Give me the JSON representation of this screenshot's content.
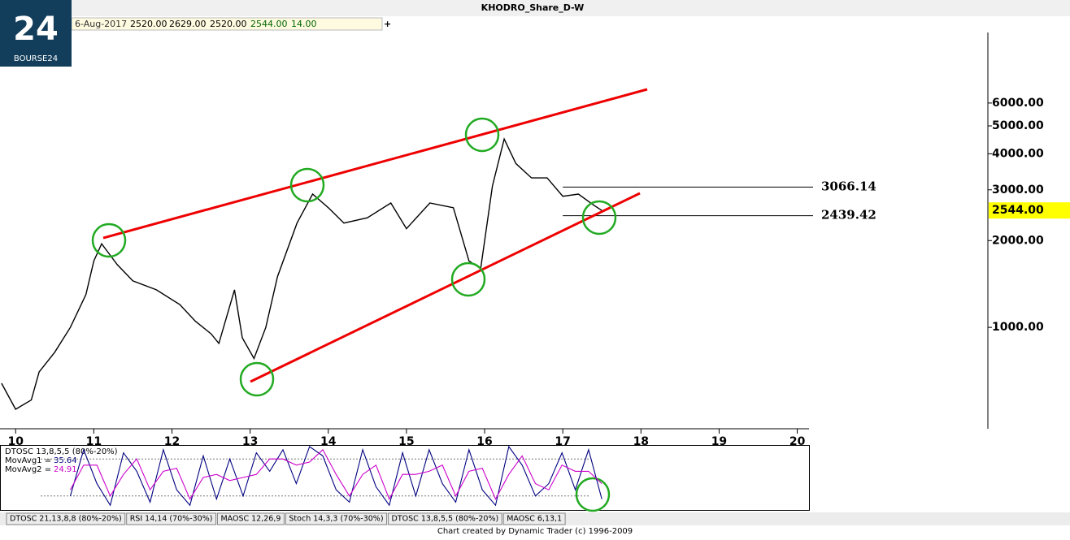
{
  "header": {
    "title": "KHODRO_Share_D-W",
    "date": "6-Aug-2017",
    "open": "2520.00",
    "high": "2629.00",
    "low": "2520.00",
    "close": "2544.00",
    "change": "14.00",
    "logo": "BOURSE24"
  },
  "chart_data": {
    "type": "line",
    "log_scale": true,
    "x": [
      9.82,
      10.0,
      10.2,
      10.3,
      10.5,
      10.7,
      10.9,
      11.0,
      11.1,
      11.3,
      11.5,
      11.8,
      12.1,
      12.3,
      12.5,
      12.6,
      12.8,
      12.9,
      13.05,
      13.2,
      13.35,
      13.6,
      13.8,
      14.0,
      14.2,
      14.5,
      14.8,
      15.0,
      15.3,
      15.6,
      15.8,
      15.95,
      16.1,
      16.25,
      16.4,
      16.6,
      16.8,
      17.0,
      17.2,
      17.4,
      17.5
    ],
    "series": [
      {
        "color": "#000000",
        "values": [
          640,
          520,
          560,
          700,
          820,
          1000,
          1300,
          1700,
          1950,
          1650,
          1450,
          1350,
          1200,
          1050,
          950,
          880,
          1350,
          920,
          780,
          1000,
          1500,
          2300,
          2900,
          2600,
          2300,
          2400,
          2700,
          2200,
          2700,
          2600,
          1700,
          1600,
          3100,
          4500,
          3700,
          3300,
          3300,
          2850,
          2900,
          2650,
          2544
        ]
      }
    ],
    "xlim": [
      9.8,
      20.15
    ],
    "xticks": [
      10,
      11,
      12,
      13,
      14,
      15,
      16,
      17,
      18,
      19,
      20
    ],
    "ylim": [
      445,
      12000
    ],
    "yticks": [
      {
        "value": 1000,
        "label": "1000.00"
      },
      {
        "value": 2000,
        "label": "2000.00"
      },
      {
        "value": 3000,
        "label": "3000.00"
      },
      {
        "value": 4000,
        "label": "4000.00"
      },
      {
        "value": 5000,
        "label": "5000.00"
      },
      {
        "value": 6000,
        "label": "6000.00"
      }
    ],
    "levels": [
      3066.14,
      2439.42
    ],
    "last": {
      "value": 2544,
      "label": "2544.00"
    }
  },
  "indicator": {
    "type": "line",
    "label": "DTOSC 13,8,5,5 (80%-20%)",
    "ma1_label": "MovAvg1 =",
    "ma1_value": "35.64",
    "ma2_label": "MovAvg2 =",
    "ma2_value": "24.91",
    "x": [
      10.7,
      10.87,
      11.04,
      11.21,
      11.38,
      11.55,
      11.72,
      11.89,
      12.06,
      12.23,
      12.4,
      12.57,
      12.74,
      12.91,
      13.08,
      13.25,
      13.42,
      13.59,
      13.76,
      13.93,
      14.1,
      14.27,
      14.44,
      14.61,
      14.78,
      14.95,
      15.12,
      15.29,
      15.46,
      15.63,
      15.8,
      15.97,
      16.14,
      16.31,
      16.48,
      16.65,
      16.82,
      16.99,
      17.16,
      17.33,
      17.5
    ],
    "series": [
      {
        "color": "#000080",
        "values": [
          20,
          95,
          40,
          5,
          90,
          60,
          10,
          95,
          30,
          5,
          85,
          15,
          80,
          20,
          90,
          60,
          95,
          40,
          100,
          85,
          30,
          10,
          95,
          35,
          5,
          90,
          20,
          95,
          40,
          10,
          95,
          30,
          5,
          100,
          70,
          20,
          40,
          90,
          30,
          95,
          15
        ]
      },
      {
        "color": "#cc00cc",
        "values": [
          30,
          70,
          70,
          20,
          55,
          80,
          30,
          60,
          65,
          15,
          50,
          55,
          45,
          50,
          55,
          80,
          80,
          70,
          75,
          95,
          55,
          20,
          55,
          70,
          15,
          55,
          55,
          60,
          70,
          20,
          60,
          65,
          15,
          55,
          85,
          40,
          30,
          70,
          60,
          60,
          40
        ]
      }
    ],
    "ylim": [
      0,
      100
    ],
    "levels": [
      80,
      20
    ]
  },
  "tabs": [
    "DTOSC 21,13,8,8 (80%-20%)",
    "RSI 14,14 (70%-30%)",
    "MAOSC 12,26,9",
    "Stoch 14,3,3 (70%-30%)",
    "DTOSC 13,8,5,5 (80%-20%)",
    "MAOSC 6,13,1"
  ],
  "footer": "Chart created by Dynamic Trader  (c) 1996-2009"
}
